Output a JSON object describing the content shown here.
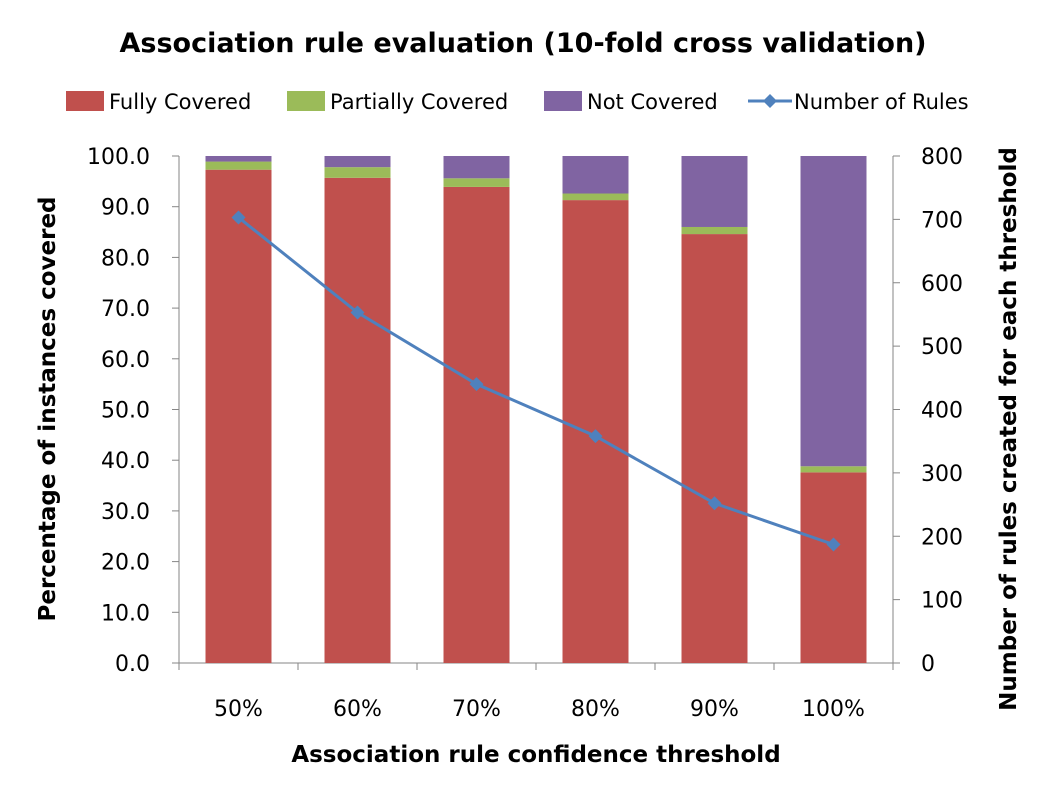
{
  "chart_data": {
    "type": "bar",
    "stacked": true,
    "title": "Association rule evaluation (10-fold cross validation)",
    "xlabel": "Association rule confidence threshold",
    "ylabel": "Percentage of instances covered",
    "y2label": "Number of rules created for each threshold",
    "categories": [
      "50%",
      "60%",
      "70%",
      "80%",
      "90%",
      "100%"
    ],
    "ylim": [
      0,
      100
    ],
    "y_ticks": [
      "0.0",
      "10.0",
      "20.0",
      "30.0",
      "40.0",
      "50.0",
      "60.0",
      "70.0",
      "80.0",
      "90.0",
      "100.0"
    ],
    "y2lim": [
      0,
      800
    ],
    "y2_ticks": [
      "0",
      "100",
      "200",
      "300",
      "400",
      "500",
      "600",
      "700",
      "800"
    ],
    "legend_position": "top",
    "series": [
      {
        "name": "Fully Covered",
        "kind": "bar",
        "axis": "left",
        "color": "#C0504D",
        "values": [
          97.3,
          95.7,
          93.9,
          91.3,
          84.6,
          37.6
        ]
      },
      {
        "name": "Partially Covered",
        "kind": "bar",
        "axis": "left",
        "color": "#9BBB59",
        "values": [
          1.6,
          2.1,
          1.7,
          1.3,
          1.4,
          1.2
        ]
      },
      {
        "name": "Not Covered",
        "kind": "bar",
        "axis": "left",
        "color": "#8064A2",
        "values": [
          1.1,
          2.2,
          4.4,
          7.4,
          14.0,
          61.2
        ]
      },
      {
        "name": "Number of Rules",
        "kind": "line",
        "axis": "right",
        "color": "#4F81BD",
        "values": [
          703,
          553,
          440,
          358,
          252,
          187
        ]
      }
    ]
  }
}
